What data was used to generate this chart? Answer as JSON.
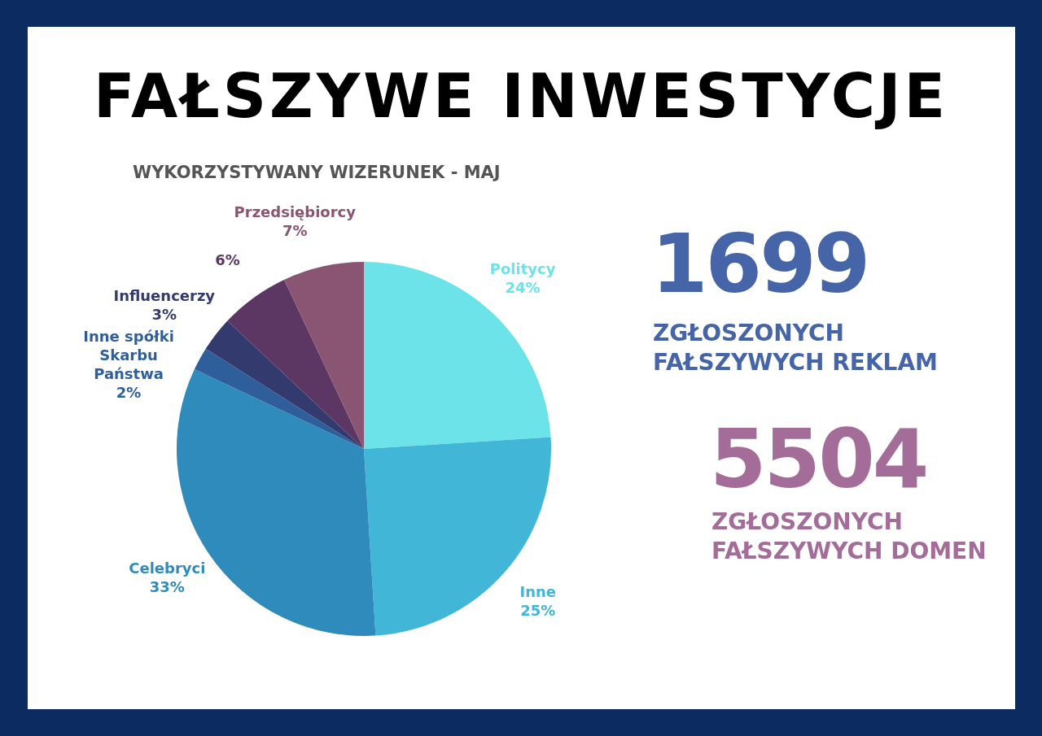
{
  "chart_data": {
    "type": "pie",
    "title": "FAŁSZYWE INWESTYCJE",
    "subtitle": "WYKORZYSTYWANY WIZERUNEK - MAJ",
    "categories": [
      "Politycy",
      "Inne",
      "Celebryci",
      "Inne spółki Skarbu Państwa",
      "Influencerzy",
      null,
      "Przedsiębiorcy"
    ],
    "values": [
      24,
      25,
      33,
      2,
      3,
      6,
      7
    ],
    "value_labels": [
      "24%",
      "25%",
      "33%",
      "2%",
      "3%",
      "6%",
      "7%"
    ],
    "colors": [
      "#6be3e8",
      "#42b6d6",
      "#2e8bbc",
      "#2f5f9a",
      "#323a6e",
      "#5c3764",
      "#8a5572"
    ],
    "annotations": [
      "1699",
      "ZGŁOSZONYCH FAŁSZYWYCH REKLAM",
      "5504",
      "ZGŁOSZONYCH FAŁSZYWYCH DOMEN"
    ],
    "legend": false
  }
}
